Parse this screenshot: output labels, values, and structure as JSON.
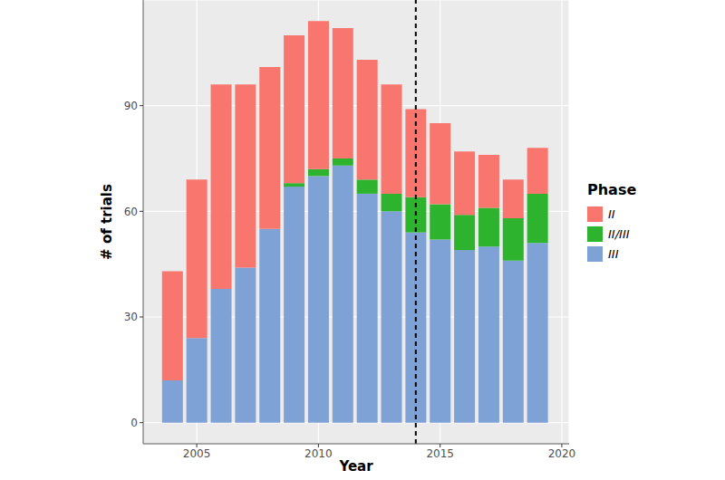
{
  "chart_data": {
    "type": "bar",
    "stacked": true,
    "grid": true,
    "legend": "right",
    "legend_title": "Phase",
    "x_label": "Year",
    "y_label": "# of trials",
    "x": [
      2004,
      2005,
      2006,
      2007,
      2008,
      2009,
      2010,
      2011,
      2012,
      2013,
      2014,
      2015,
      2016,
      2017,
      2018,
      2019
    ],
    "series": [
      {
        "name": "II",
        "color": "#F8766D",
        "values": [
          31,
          45,
          58,
          52,
          46,
          42,
          42,
          37,
          34,
          31,
          25,
          23,
          18,
          15,
          11,
          13
        ]
      },
      {
        "name": "II/III",
        "color": "#2DB32D",
        "values": [
          0,
          0,
          0,
          0,
          0,
          1,
          2,
          2,
          4,
          5,
          10,
          10,
          10,
          11,
          12,
          14
        ]
      },
      {
        "name": "III",
        "color": "#7FA2D6",
        "values": [
          12,
          24,
          38,
          44,
          55,
          67,
          70,
          73,
          65,
          60,
          54,
          52,
          49,
          50,
          46,
          51
        ]
      }
    ],
    "xlim": [
      2002.8,
      2020.3
    ],
    "xticks": [
      2005,
      2010,
      2015,
      2020
    ],
    "ylim": [
      -6,
      120
    ],
    "yticks": [
      0,
      30,
      60,
      90
    ],
    "vlines": [
      2014
    ]
  }
}
